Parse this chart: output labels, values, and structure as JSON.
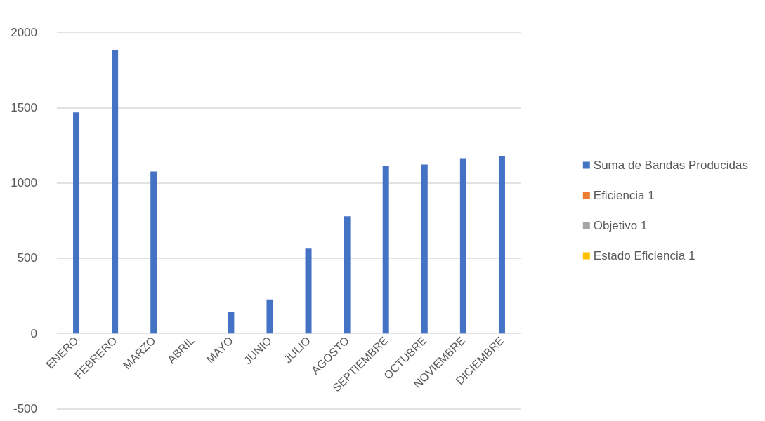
{
  "chart_data": {
    "type": "bar",
    "categories": [
      "ENERO",
      "FEBRERO",
      "MARZO",
      "ABRIL",
      "MAYO",
      "JUNIO",
      "JULIO",
      "AGOSTO",
      "SEPTIEMBRE",
      "OCTUBRE",
      "NOVIEMBRE",
      "DICIEMBRE"
    ],
    "series": [
      {
        "name": "Suma de Bandas Producidas",
        "color": "#4472c4",
        "values": [
          1468,
          1883,
          1075,
          null,
          143,
          226,
          564,
          778,
          1112,
          1122,
          1163,
          1177
        ]
      },
      {
        "name": "Eficiencia 1",
        "color": "#ed7d31",
        "values": [
          null,
          null,
          null,
          null,
          null,
          null,
          null,
          null,
          null,
          null,
          null,
          null
        ]
      },
      {
        "name": "Objetivo 1",
        "color": "#a5a5a5",
        "values": [
          null,
          null,
          null,
          null,
          null,
          null,
          null,
          null,
          null,
          null,
          null,
          null
        ]
      },
      {
        "name": "Estado Eficiencia 1",
        "color": "#ffc000",
        "values": [
          null,
          null,
          null,
          null,
          null,
          null,
          null,
          null,
          null,
          null,
          null,
          null
        ]
      }
    ],
    "ylim": [
      -500,
      2000
    ],
    "yticks": [
      -500,
      0,
      500,
      1000,
      1500,
      2000
    ],
    "grid": "y",
    "legend": "right"
  }
}
